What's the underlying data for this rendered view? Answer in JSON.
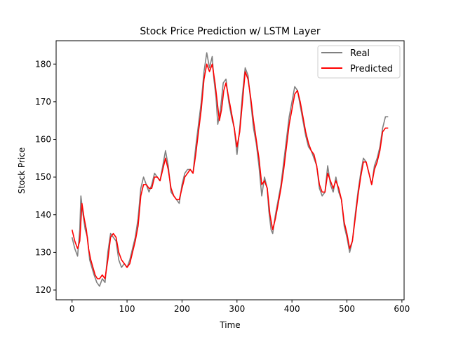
{
  "chart_data": {
    "type": "line",
    "title": "Stock Price Prediction w/ LSTM Layer",
    "xlabel": "Time",
    "ylabel": "Stock Price",
    "xlim": [
      -29,
      604
    ],
    "ylim": [
      117.4,
      186.2
    ],
    "xticks": [
      0,
      100,
      200,
      300,
      400,
      500,
      600
    ],
    "yticks": [
      120,
      130,
      140,
      150,
      160,
      170,
      180
    ],
    "grid": false,
    "legend_position": "top-right",
    "series": [
      {
        "name": "Real",
        "color": "#808080",
        "points": [
          [
            0,
            134
          ],
          [
            5,
            131
          ],
          [
            10,
            129
          ],
          [
            14,
            136
          ],
          [
            16,
            145
          ],
          [
            20,
            140
          ],
          [
            24,
            136
          ],
          [
            28,
            134
          ],
          [
            32,
            128
          ],
          [
            36,
            126
          ],
          [
            40,
            124
          ],
          [
            45,
            122
          ],
          [
            50,
            121
          ],
          [
            55,
            123
          ],
          [
            60,
            122
          ],
          [
            65,
            130
          ],
          [
            70,
            135
          ],
          [
            75,
            134
          ],
          [
            80,
            133
          ],
          [
            85,
            128
          ],
          [
            90,
            126
          ],
          [
            95,
            127
          ],
          [
            100,
            126
          ],
          [
            105,
            128
          ],
          [
            110,
            131
          ],
          [
            115,
            134
          ],
          [
            120,
            139
          ],
          [
            125,
            147
          ],
          [
            130,
            150
          ],
          [
            135,
            148
          ],
          [
            140,
            146
          ],
          [
            145,
            148
          ],
          [
            150,
            151
          ],
          [
            155,
            150
          ],
          [
            160,
            149
          ],
          [
            165,
            153
          ],
          [
            170,
            157
          ],
          [
            175,
            153
          ],
          [
            180,
            146
          ],
          [
            185,
            145
          ],
          [
            190,
            144
          ],
          [
            195,
            143
          ],
          [
            200,
            148
          ],
          [
            205,
            151
          ],
          [
            210,
            152
          ],
          [
            215,
            152
          ],
          [
            220,
            151
          ],
          [
            225,
            158
          ],
          [
            230,
            164
          ],
          [
            235,
            170
          ],
          [
            240,
            178
          ],
          [
            245,
            183
          ],
          [
            250,
            179
          ],
          [
            255,
            182
          ],
          [
            258,
            176
          ],
          [
            262,
            171
          ],
          [
            265,
            164
          ],
          [
            270,
            168
          ],
          [
            275,
            175
          ],
          [
            280,
            176
          ],
          [
            285,
            170
          ],
          [
            290,
            166
          ],
          [
            295,
            163
          ],
          [
            300,
            156
          ],
          [
            305,
            163
          ],
          [
            310,
            172
          ],
          [
            315,
            179
          ],
          [
            320,
            177
          ],
          [
            325,
            170
          ],
          [
            330,
            163
          ],
          [
            335,
            159
          ],
          [
            340,
            153
          ],
          [
            345,
            145
          ],
          [
            350,
            150
          ],
          [
            355,
            147
          ],
          [
            358,
            141
          ],
          [
            362,
            136
          ],
          [
            365,
            135
          ],
          [
            370,
            140
          ],
          [
            375,
            144
          ],
          [
            380,
            148
          ],
          [
            385,
            154
          ],
          [
            390,
            160
          ],
          [
            395,
            166
          ],
          [
            400,
            170
          ],
          [
            405,
            174
          ],
          [
            410,
            173
          ],
          [
            415,
            169
          ],
          [
            420,
            165
          ],
          [
            425,
            161
          ],
          [
            430,
            158
          ],
          [
            435,
            157
          ],
          [
            440,
            155
          ],
          [
            445,
            153
          ],
          [
            450,
            147
          ],
          [
            455,
            145
          ],
          [
            460,
            146
          ],
          [
            465,
            153
          ],
          [
            470,
            148
          ],
          [
            475,
            146
          ],
          [
            480,
            150
          ],
          [
            485,
            146
          ],
          [
            490,
            144
          ],
          [
            495,
            137
          ],
          [
            500,
            134
          ],
          [
            505,
            130
          ],
          [
            510,
            133
          ],
          [
            515,
            140
          ],
          [
            520,
            146
          ],
          [
            525,
            151
          ],
          [
            530,
            155
          ],
          [
            535,
            154
          ],
          [
            540,
            151
          ],
          [
            545,
            148
          ],
          [
            550,
            153
          ],
          [
            555,
            155
          ],
          [
            560,
            158
          ],
          [
            565,
            163
          ],
          [
            570,
            166
          ],
          [
            575,
            166
          ]
        ]
      },
      {
        "name": "Predicted",
        "color": "#ff0000",
        "points": [
          [
            0,
            136
          ],
          [
            5,
            133
          ],
          [
            10,
            131
          ],
          [
            14,
            133
          ],
          [
            18,
            143
          ],
          [
            22,
            139
          ],
          [
            26,
            136
          ],
          [
            30,
            131
          ],
          [
            34,
            128
          ],
          [
            38,
            126
          ],
          [
            42,
            124
          ],
          [
            46,
            123
          ],
          [
            50,
            123
          ],
          [
            55,
            124
          ],
          [
            60,
            123
          ],
          [
            65,
            128
          ],
          [
            70,
            134
          ],
          [
            75,
            135
          ],
          [
            80,
            134
          ],
          [
            85,
            130
          ],
          [
            90,
            128
          ],
          [
            95,
            127
          ],
          [
            100,
            126
          ],
          [
            105,
            127
          ],
          [
            110,
            130
          ],
          [
            115,
            133
          ],
          [
            120,
            137
          ],
          [
            125,
            145
          ],
          [
            130,
            148
          ],
          [
            135,
            148
          ],
          [
            140,
            147
          ],
          [
            145,
            147
          ],
          [
            150,
            150
          ],
          [
            155,
            150
          ],
          [
            160,
            149
          ],
          [
            165,
            152
          ],
          [
            170,
            155
          ],
          [
            175,
            152
          ],
          [
            180,
            147
          ],
          [
            185,
            145
          ],
          [
            190,
            144
          ],
          [
            195,
            144
          ],
          [
            200,
            147
          ],
          [
            205,
            150
          ],
          [
            210,
            151
          ],
          [
            215,
            152
          ],
          [
            220,
            151
          ],
          [
            225,
            156
          ],
          [
            230,
            162
          ],
          [
            235,
            168
          ],
          [
            240,
            176
          ],
          [
            245,
            180
          ],
          [
            250,
            178
          ],
          [
            255,
            180
          ],
          [
            260,
            175
          ],
          [
            264,
            170
          ],
          [
            268,
            165
          ],
          [
            272,
            168
          ],
          [
            276,
            173
          ],
          [
            280,
            175
          ],
          [
            285,
            171
          ],
          [
            290,
            167
          ],
          [
            295,
            163
          ],
          [
            300,
            158
          ],
          [
            305,
            162
          ],
          [
            310,
            170
          ],
          [
            315,
            178
          ],
          [
            320,
            176
          ],
          [
            325,
            171
          ],
          [
            330,
            165
          ],
          [
            335,
            160
          ],
          [
            340,
            155
          ],
          [
            345,
            148
          ],
          [
            350,
            149
          ],
          [
            355,
            147
          ],
          [
            360,
            140
          ],
          [
            365,
            136
          ],
          [
            370,
            139
          ],
          [
            375,
            143
          ],
          [
            380,
            147
          ],
          [
            385,
            152
          ],
          [
            390,
            158
          ],
          [
            395,
            164
          ],
          [
            400,
            168
          ],
          [
            405,
            172
          ],
          [
            410,
            173
          ],
          [
            415,
            170
          ],
          [
            420,
            166
          ],
          [
            425,
            162
          ],
          [
            430,
            159
          ],
          [
            435,
            157
          ],
          [
            440,
            156
          ],
          [
            445,
            153
          ],
          [
            450,
            148
          ],
          [
            455,
            146
          ],
          [
            460,
            146
          ],
          [
            465,
            151
          ],
          [
            470,
            149
          ],
          [
            475,
            147
          ],
          [
            480,
            149
          ],
          [
            485,
            147
          ],
          [
            490,
            144
          ],
          [
            495,
            138
          ],
          [
            500,
            135
          ],
          [
            505,
            131
          ],
          [
            510,
            133
          ],
          [
            515,
            139
          ],
          [
            520,
            145
          ],
          [
            525,
            150
          ],
          [
            530,
            154
          ],
          [
            535,
            154
          ],
          [
            540,
            151
          ],
          [
            545,
            148
          ],
          [
            550,
            152
          ],
          [
            555,
            154
          ],
          [
            560,
            157
          ],
          [
            565,
            162
          ],
          [
            570,
            163
          ],
          [
            575,
            163
          ]
        ]
      }
    ]
  }
}
